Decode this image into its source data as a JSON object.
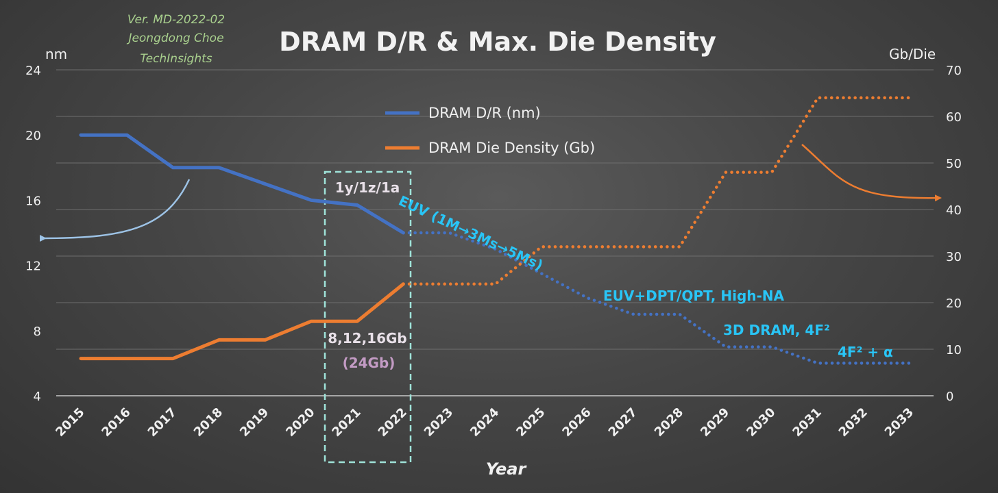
{
  "version_note": [
    "Ver. MD-2022-02",
    "Jeongdong Choe",
    "TechInsights"
  ],
  "colors": {
    "dr_line": "#4472c4",
    "density_line": "#ed7d31",
    "annotation": "#29c5f6",
    "highlight_box": "#9fe3d9",
    "curve_arrow_left": "#9dc3e6",
    "curve_arrow_right": "#ed7d31"
  },
  "chart_data": {
    "type": "line",
    "title": "DRAM D/R & Max. Die Density",
    "xlabel": "Year",
    "ylabel_left": "nm",
    "ylabel_right": "Gb/Die",
    "categories": [
      "2015",
      "2016",
      "2017",
      "2018",
      "2019",
      "2020",
      "2021",
      "2022",
      "2023",
      "2024",
      "2025",
      "2026",
      "2027",
      "2028",
      "2029",
      "2030",
      "2031",
      "2032",
      "2033"
    ],
    "ylim_left": [
      4,
      24
    ],
    "yticks_left": [
      "4",
      "8",
      "12",
      "16",
      "20",
      "24"
    ],
    "ylim_right": [
      0,
      70
    ],
    "yticks_right": [
      "0",
      "10",
      "20",
      "30",
      "40",
      "50",
      "60",
      "70"
    ],
    "grid": "horizontal",
    "legend": "top-center",
    "series": [
      {
        "name": "DRAM D/R (nm)",
        "axis": "left",
        "solid_until": "2022",
        "x": [
          "2015",
          "2016",
          "2017",
          "2018",
          "2019",
          "2020",
          "2021",
          "2022",
          "2023",
          "2024",
          "2025",
          "2026",
          "2027",
          "2028",
          "2029",
          "2030",
          "2031",
          "2032",
          "2033"
        ],
        "values": [
          20,
          20,
          18,
          18,
          17,
          16,
          15.7,
          14,
          14,
          13,
          11.5,
          10,
          9,
          9,
          7,
          7,
          6,
          6,
          6
        ]
      },
      {
        "name": "DRAM Die Density (Gb)",
        "axis": "right",
        "solid_until": "2022",
        "x": [
          "2015",
          "2016",
          "2017",
          "2018",
          "2019",
          "2020",
          "2021",
          "2022",
          "2023",
          "2024",
          "2025",
          "2026",
          "2027",
          "2028",
          "2029",
          "2030",
          "2031",
          "2032",
          "2033"
        ],
        "values": [
          8,
          8,
          8,
          12,
          12,
          16,
          16,
          24,
          24,
          24,
          32,
          32,
          32,
          32,
          48,
          48,
          64,
          64,
          64
        ]
      }
    ],
    "annotations": {
      "box_top": "1y/1z/1a",
      "box_density": "8,12,16Gb",
      "box_density_sub": "(24Gb)",
      "euv": "EUV (1M→3Ms→5Ms)",
      "euv_dpt": "EUV+DPT/QPT, High-NA",
      "dram3d": "3D DRAM, 4F²",
      "f2": "4F² + α"
    }
  }
}
